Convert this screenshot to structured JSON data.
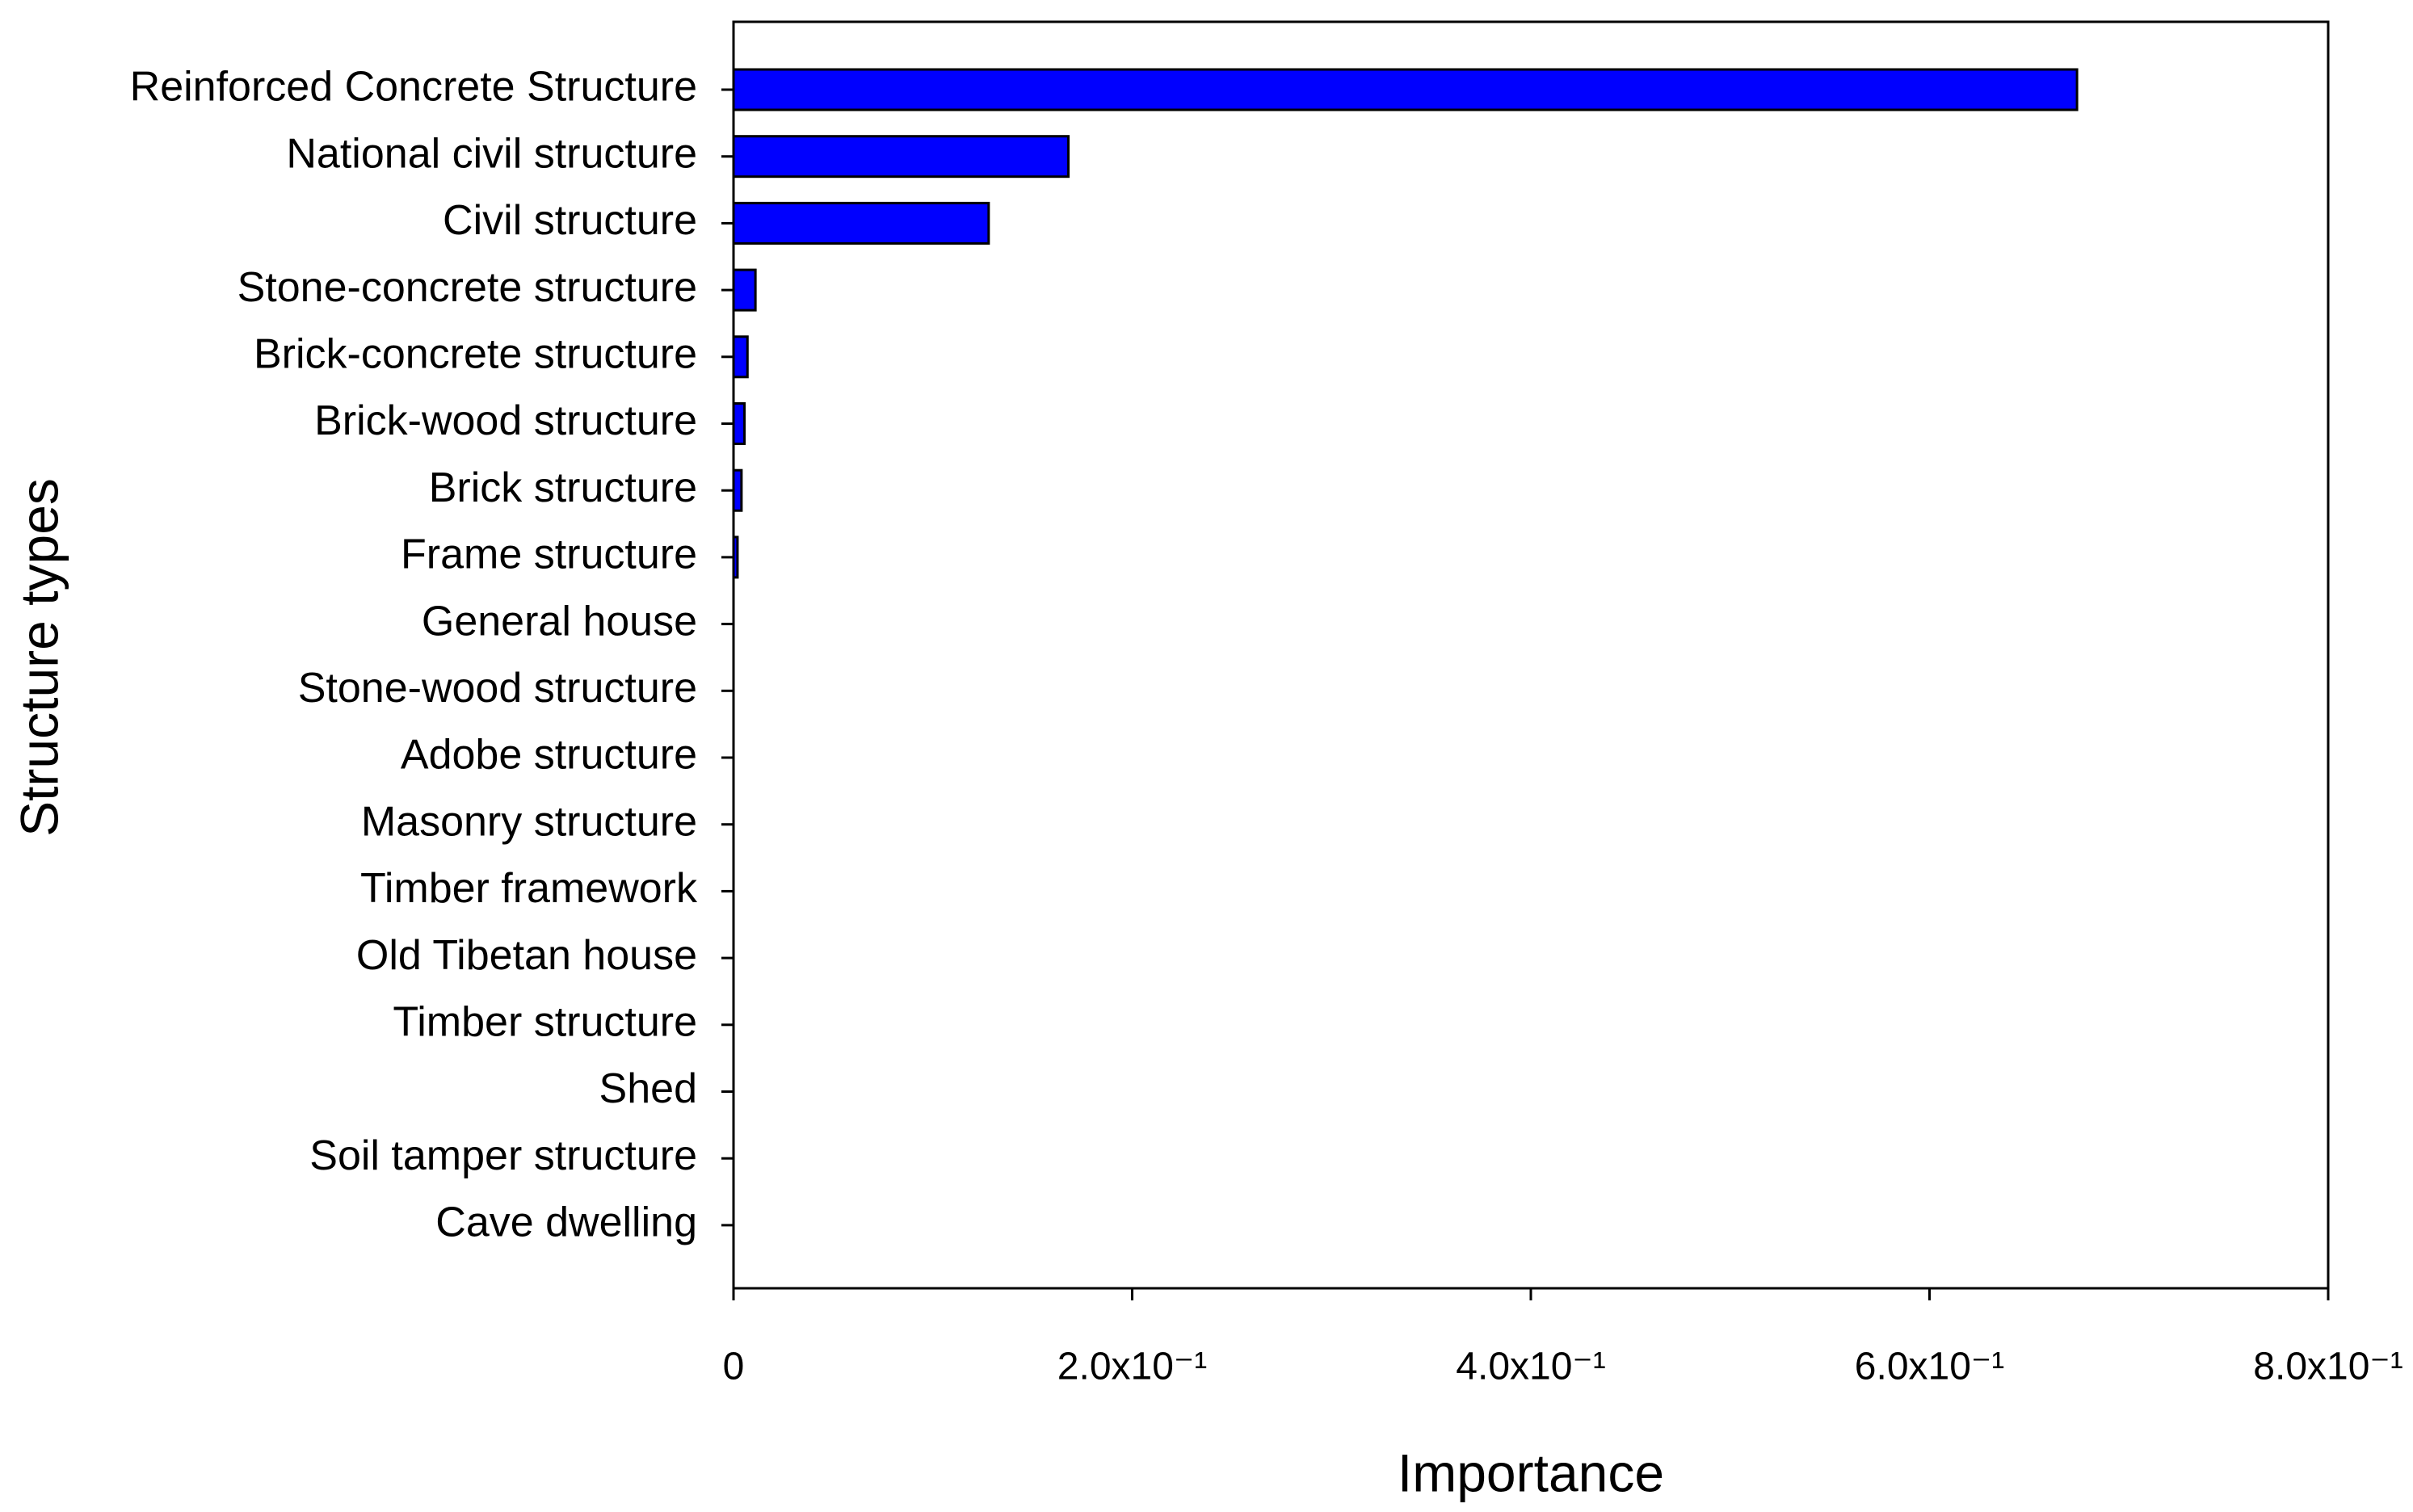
{
  "chart_data": {
    "type": "bar",
    "orientation": "horizontal",
    "x_label": "Importance",
    "y_label": "Structure types",
    "categories": [
      "Reinforced Concrete Structure",
      "National civil structure",
      "Civil structure",
      "Stone-concrete structure",
      "Brick-concrete structure",
      "Brick-wood structure",
      "Brick structure",
      "Frame structure",
      "General house",
      "Stone-wood structure",
      "Adobe structure",
      "Masonry structure",
      "Timber framework",
      "Old Tibetan house",
      "Timber structure",
      "Shed",
      "Soil tamper structure",
      "Cave dwelling"
    ],
    "values": [
      0.674,
      0.168,
      0.128,
      0.011,
      0.007,
      0.0055,
      0.004,
      0.002,
      0,
      0,
      0,
      0,
      0,
      0,
      0,
      0,
      0,
      0
    ],
    "color": "#0000ff",
    "xlim": [
      0,
      0.8
    ],
    "xticks": [
      0,
      {
        "value": 0.2,
        "label": "2.0x10⁻¹"
      },
      {
        "value": 0.4,
        "label": "4.0x10⁻¹"
      },
      {
        "value": 0.6,
        "label": "6.0x10⁻¹"
      },
      {
        "value": 0.8,
        "label": "8.0x10⁻¹"
      }
    ],
    "grid": false
  }
}
